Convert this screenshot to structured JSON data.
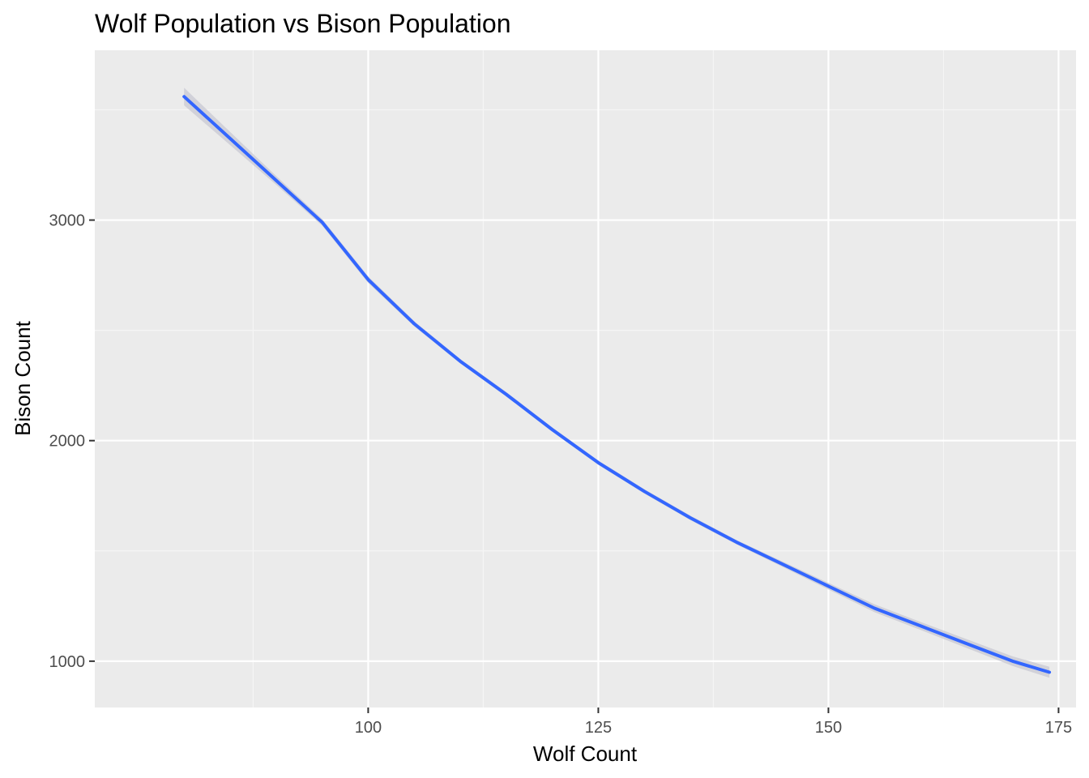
{
  "chart_data": {
    "type": "line",
    "title": "Wolf Population vs Bison Population",
    "xlabel": "Wolf Count",
    "ylabel": "Bison Count",
    "xlim": [
      70.3,
      176.9
    ],
    "ylim": [
      790,
      3770
    ],
    "x_ticks": [
      100,
      125,
      150,
      175
    ],
    "x_tick_labels": [
      "100",
      "125",
      "150",
      "175"
    ],
    "x_minor_ticks": [
      87.5,
      112.5,
      137.5,
      162.5
    ],
    "y_ticks": [
      1000,
      2000,
      3000
    ],
    "y_tick_labels": [
      "1000",
      "2000",
      "3000"
    ],
    "y_minor_ticks": [
      1500,
      2500,
      3500
    ],
    "grid": true,
    "legend": "none",
    "colors": {
      "panel_background": "#ebebeb",
      "grid_major": "#ffffff",
      "grid_minor": "#f5f5f5",
      "line": "#3366ff",
      "ribbon": "#cdcdd6"
    },
    "series": [
      {
        "x": [
          80,
          85,
          90,
          95,
          100,
          105,
          110,
          115,
          120,
          125,
          130,
          135,
          140,
          145,
          150,
          155,
          160,
          165,
          170,
          174
        ],
        "values": [
          3560,
          3370,
          3180,
          2990,
          2730,
          2530,
          2360,
          2210,
          2050,
          1900,
          1770,
          1650,
          1540,
          1440,
          1340,
          1240,
          1160,
          1080,
          1000,
          950
        ],
        "upper": [
          3600,
          3400,
          3200,
          3005,
          2745,
          2542,
          2370,
          2220,
          2060,
          1910,
          1780,
          1660,
          1550,
          1452,
          1355,
          1258,
          1178,
          1100,
          1022,
          975
        ],
        "lower": [
          3520,
          3340,
          3160,
          2975,
          2715,
          2518,
          2350,
          2200,
          2040,
          1890,
          1760,
          1640,
          1530,
          1428,
          1325,
          1222,
          1142,
          1060,
          978,
          925
        ]
      }
    ]
  }
}
